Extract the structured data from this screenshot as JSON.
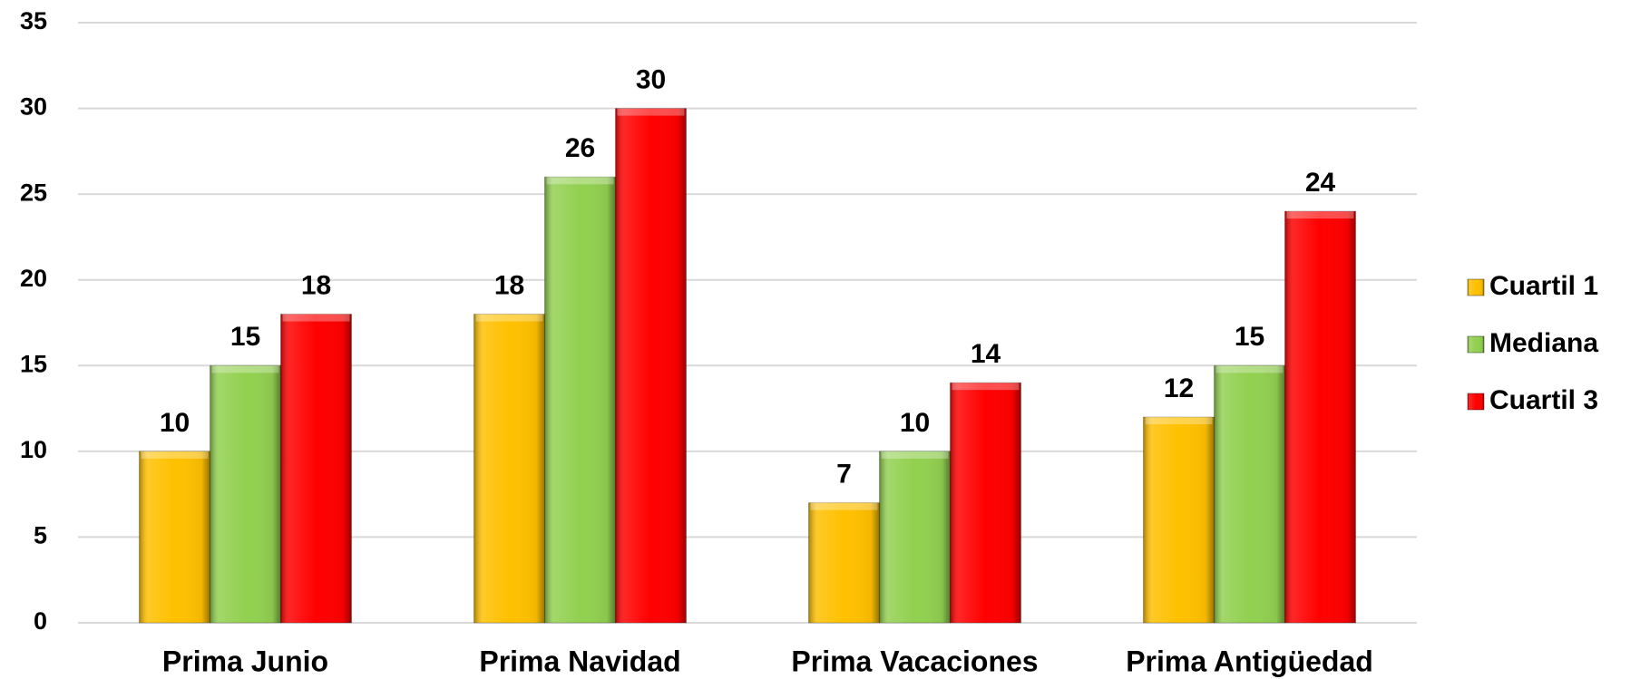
{
  "chart_data": {
    "type": "bar",
    "categories": [
      "Prima Junio",
      "Prima Navidad",
      "Prima Vacaciones",
      "Prima Antigüedad"
    ],
    "series": [
      {
        "name": "Cuartil 1",
        "color": "#ffc000",
        "values": [
          10,
          18,
          7,
          12
        ]
      },
      {
        "name": "Mediana",
        "color": "#92d050",
        "values": [
          15,
          26,
          10,
          15
        ]
      },
      {
        "name": "Cuartil 3",
        "color": "#ff0000",
        "values": [
          18,
          30,
          14,
          24
        ]
      }
    ],
    "ylim": [
      0,
      35
    ],
    "yticks": [
      0,
      5,
      10,
      15,
      20,
      25,
      30,
      35
    ],
    "grid": true,
    "legend": "right"
  }
}
